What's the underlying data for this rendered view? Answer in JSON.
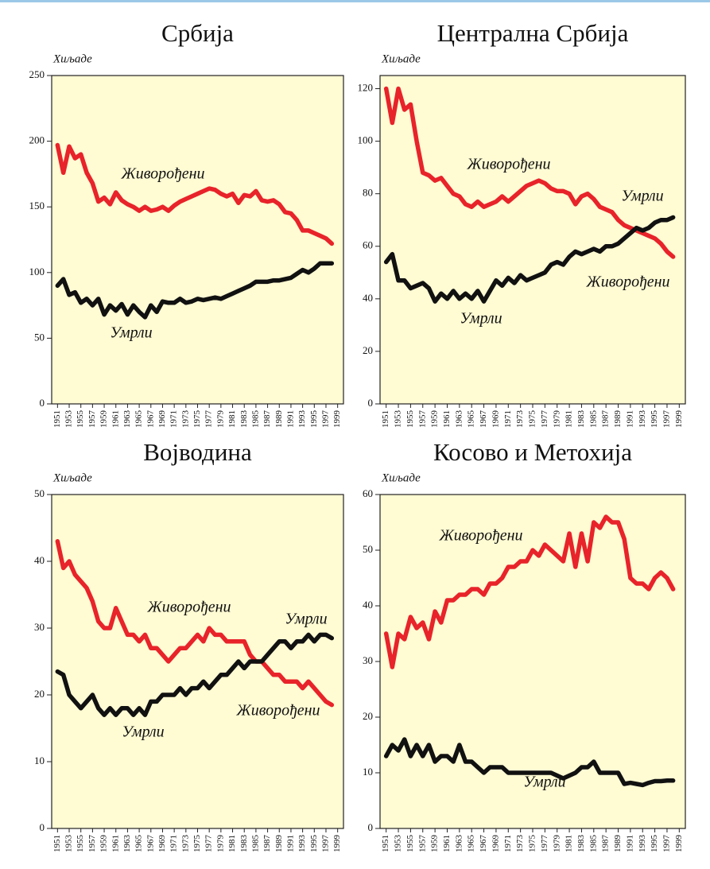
{
  "chart_data": [
    {
      "type": "line",
      "title": "Србија",
      "y_label": "Хиљаде",
      "x": [
        1951,
        1952,
        1953,
        1954,
        1955,
        1956,
        1957,
        1958,
        1959,
        1960,
        1961,
        1962,
        1963,
        1964,
        1965,
        1966,
        1967,
        1968,
        1969,
        1970,
        1971,
        1972,
        1973,
        1974,
        1975,
        1976,
        1977,
        1978,
        1979,
        1980,
        1981,
        1982,
        1983,
        1984,
        1985,
        1986,
        1987,
        1988,
        1989,
        1990,
        1991,
        1992,
        1993,
        1994,
        1995,
        1996,
        1997,
        1998
      ],
      "xlim": [
        1950,
        2000
      ],
      "xticks": [
        1951,
        1953,
        1955,
        1957,
        1959,
        1961,
        1963,
        1965,
        1967,
        1969,
        1971,
        1973,
        1975,
        1977,
        1979,
        1981,
        1983,
        1985,
        1987,
        1989,
        1991,
        1993,
        1995,
        1997,
        1999
      ],
      "ylim": [
        0,
        250
      ],
      "yticks": [
        0,
        50,
        100,
        150,
        200,
        250
      ],
      "series": [
        {
          "name": "Живорођени",
          "color": "#e8232a",
          "values": [
            197,
            176,
            196,
            187,
            190,
            176,
            168,
            154,
            157,
            152,
            161,
            155,
            152,
            150,
            147,
            150,
            147,
            148,
            150,
            147,
            151,
            154,
            156,
            158,
            160,
            162,
            164,
            163,
            160,
            158,
            160,
            153,
            159,
            158,
            162,
            155,
            154,
            155,
            152,
            146,
            145,
            140,
            132,
            132,
            130,
            128,
            126,
            122
          ]
        },
        {
          "name": "Умрли",
          "color": "#111111",
          "values": [
            90,
            95,
            83,
            85,
            77,
            80,
            75,
            80,
            68,
            75,
            71,
            76,
            68,
            75,
            70,
            66,
            75,
            70,
            78,
            77,
            77,
            80,
            77,
            78,
            80,
            79,
            80,
            81,
            80,
            82,
            84,
            86,
            88,
            90,
            93,
            93,
            93,
            94,
            94,
            95,
            96,
            99,
            102,
            100,
            103,
            107,
            107,
            107
          ]
        }
      ]
    },
    {
      "type": "line",
      "title": "Централна Србија",
      "y_label": "Хиљаде",
      "x": [
        1951,
        1952,
        1953,
        1954,
        1955,
        1956,
        1957,
        1958,
        1959,
        1960,
        1961,
        1962,
        1963,
        1964,
        1965,
        1966,
        1967,
        1968,
        1969,
        1970,
        1971,
        1972,
        1973,
        1974,
        1975,
        1976,
        1977,
        1978,
        1979,
        1980,
        1981,
        1982,
        1983,
        1984,
        1985,
        1986,
        1987,
        1988,
        1989,
        1990,
        1991,
        1992,
        1993,
        1994,
        1995,
        1996,
        1997,
        1998
      ],
      "xlim": [
        1950,
        2000
      ],
      "xticks": [
        1951,
        1953,
        1955,
        1957,
        1959,
        1961,
        1963,
        1965,
        1967,
        1969,
        1971,
        1973,
        1975,
        1977,
        1979,
        1981,
        1983,
        1985,
        1987,
        1989,
        1991,
        1993,
        1995,
        1997,
        1999
      ],
      "ylim": [
        0,
        125
      ],
      "yticks": [
        0,
        20,
        40,
        60,
        80,
        100,
        120
      ],
      "series": [
        {
          "name": "Живорођени",
          "color": "#e8232a",
          "values": [
            120,
            107,
            120,
            112,
            114,
            100,
            88,
            87,
            85,
            86,
            83,
            80,
            79,
            76,
            75,
            77,
            75,
            76,
            77,
            79,
            77,
            79,
            81,
            83,
            84,
            85,
            84,
            82,
            81,
            81,
            80,
            76,
            79,
            80,
            78,
            75,
            74,
            73,
            70,
            68,
            67,
            66,
            65,
            64,
            63,
            61,
            58,
            56
          ]
        },
        {
          "name": "Умрли",
          "color": "#111111",
          "values": [
            54,
            57,
            47,
            47,
            44,
            45,
            46,
            44,
            39,
            42,
            40,
            43,
            40,
            42,
            40,
            43,
            39,
            43,
            47,
            45,
            48,
            46,
            49,
            47,
            48,
            49,
            50,
            53,
            54,
            53,
            56,
            58,
            57,
            58,
            59,
            58,
            60,
            60,
            61,
            63,
            65,
            67,
            66,
            67,
            69,
            70,
            70,
            71
          ]
        }
      ],
      "annotations": [
        {
          "text": "Умрли"
        },
        {
          "text": "Живорођени"
        }
      ]
    },
    {
      "type": "line",
      "title": "Војводина",
      "y_label": "Хиљаде",
      "x": [
        1951,
        1952,
        1953,
        1954,
        1955,
        1956,
        1957,
        1958,
        1959,
        1960,
        1961,
        1962,
        1963,
        1964,
        1965,
        1966,
        1967,
        1968,
        1969,
        1970,
        1971,
        1972,
        1973,
        1974,
        1975,
        1976,
        1977,
        1978,
        1979,
        1980,
        1981,
        1982,
        1983,
        1984,
        1985,
        1986,
        1987,
        1988,
        1989,
        1990,
        1991,
        1992,
        1993,
        1994,
        1995,
        1996,
        1997,
        1998
      ],
      "xlim": [
        1950,
        2000
      ],
      "xticks": [
        1951,
        1953,
        1955,
        1957,
        1959,
        1961,
        1963,
        1965,
        1967,
        1969,
        1971,
        1973,
        1975,
        1977,
        1979,
        1981,
        1983,
        1985,
        1987,
        1989,
        1991,
        1993,
        1995,
        1997,
        1999
      ],
      "ylim": [
        0,
        50
      ],
      "yticks": [
        0,
        10,
        20,
        30,
        40,
        50
      ],
      "series": [
        {
          "name": "Живорођени",
          "color": "#e8232a",
          "values": [
            43,
            39,
            40,
            38,
            37,
            36,
            34,
            31,
            30,
            30,
            33,
            31,
            29,
            29,
            28,
            29,
            27,
            27,
            26,
            25,
            26,
            27,
            27,
            28,
            29,
            28,
            30,
            29,
            29,
            28,
            28,
            28,
            28,
            26,
            25,
            25,
            24,
            23,
            23,
            22,
            22,
            22,
            21,
            22,
            21,
            20,
            19,
            18.5
          ]
        },
        {
          "name": "Умрли",
          "color": "#111111",
          "values": [
            23.5,
            23,
            20,
            19,
            18,
            19,
            20,
            18,
            17,
            18,
            17,
            18,
            18,
            17,
            18,
            17,
            19,
            19,
            20,
            20,
            20,
            21,
            20,
            21,
            21,
            22,
            21,
            22,
            23,
            23,
            24,
            25,
            24,
            25,
            25,
            25,
            26,
            27,
            28,
            28,
            27,
            28,
            28,
            29,
            28,
            29,
            29,
            28.5
          ]
        }
      ],
      "annotations": [
        {
          "text": "Умрли"
        },
        {
          "text": "Живорођени"
        }
      ]
    },
    {
      "type": "line",
      "title": "Косово и Метохија",
      "y_label": "Хиљаде",
      "x": [
        1951,
        1952,
        1953,
        1954,
        1955,
        1956,
        1957,
        1958,
        1959,
        1960,
        1961,
        1962,
        1963,
        1964,
        1965,
        1966,
        1967,
        1968,
        1969,
        1970,
        1971,
        1972,
        1973,
        1974,
        1975,
        1976,
        1977,
        1978,
        1979,
        1980,
        1981,
        1982,
        1983,
        1984,
        1985,
        1986,
        1987,
        1988,
        1989,
        1990,
        1991,
        1992,
        1993,
        1994,
        1995,
        1996,
        1997,
        1998
      ],
      "xlim": [
        1950,
        2000
      ],
      "xticks": [
        1951,
        1953,
        1955,
        1957,
        1959,
        1961,
        1963,
        1965,
        1967,
        1969,
        1971,
        1973,
        1975,
        1977,
        1979,
        1981,
        1983,
        1985,
        1987,
        1989,
        1991,
        1993,
        1995,
        1997,
        1999
      ],
      "ylim": [
        0,
        60
      ],
      "yticks": [
        0,
        10,
        20,
        30,
        40,
        50,
        60
      ],
      "series": [
        {
          "name": "Живорођени",
          "color": "#e8232a",
          "values": [
            35,
            29,
            35,
            34,
            38,
            36,
            37,
            34,
            39,
            37,
            41,
            41,
            42,
            42,
            43,
            43,
            42,
            44,
            44,
            45,
            47,
            47,
            48,
            48,
            50,
            49,
            51,
            50,
            49,
            48,
            53,
            47,
            53,
            48,
            55,
            54,
            56,
            55,
            55,
            52,
            45,
            44,
            44,
            43,
            45,
            46,
            45,
            43
          ]
        },
        {
          "name": "Умрли",
          "color": "#111111",
          "values": [
            13,
            15,
            14,
            16,
            13,
            15,
            13,
            15,
            12,
            13,
            13,
            12,
            15,
            12,
            12,
            11,
            10,
            11,
            11,
            11,
            10,
            10,
            10,
            10,
            10,
            10,
            10,
            10,
            9.5,
            9,
            9.5,
            10,
            11,
            11,
            12,
            10,
            10,
            10,
            10,
            8,
            8.2,
            8,
            7.8,
            8.2,
            8.5,
            8.5,
            8.6,
            8.6
          ]
        }
      ]
    }
  ]
}
